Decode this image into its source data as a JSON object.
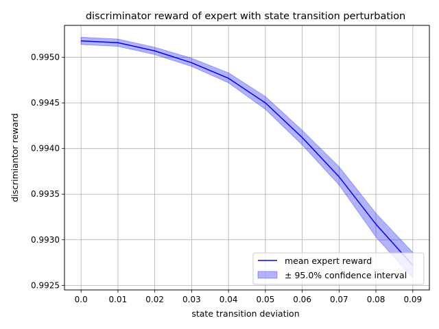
{
  "chart_data": {
    "type": "line",
    "title": "discriminator reward of expert with state transition perturbation",
    "xlabel": "state transition deviation",
    "ylabel": "discrimiantor reward",
    "x": [
      0.0,
      0.01,
      0.02,
      0.03,
      0.04,
      0.05,
      0.06,
      0.07,
      0.08,
      0.09
    ],
    "x_tick_labels": [
      "0.0",
      "0.01",
      "0.02",
      "0.03",
      "0.04",
      "0.05",
      "0.06",
      "0.07",
      "0.08",
      "0.09"
    ],
    "y_ticks": [
      0.9925,
      0.993,
      0.9935,
      0.994,
      0.9945,
      0.995
    ],
    "y_tick_labels": [
      "0.9925",
      "0.9930",
      "0.9935",
      "0.9940",
      "0.9945",
      "0.9950"
    ],
    "xlim": [
      -0.0045,
      0.0945
    ],
    "ylim": [
      0.99245,
      0.99535
    ],
    "grid": true,
    "legend_position": "lower-right",
    "series": [
      {
        "name": "mean expert reward",
        "color": "#0000ff",
        "values": [
          0.99518,
          0.99516,
          0.99507,
          0.99494,
          0.99477,
          0.9945,
          0.99412,
          0.99369,
          0.99317,
          0.99272
        ],
        "band_name": "± 95.0% confidence interval",
        "band_color": "#0000ff",
        "band_alpha": 0.3,
        "lower": [
          0.99514,
          0.99512,
          0.99503,
          0.9949,
          0.99472,
          0.99443,
          0.99404,
          0.9936,
          0.99303,
          0.99258
        ],
        "upper": [
          0.99522,
          0.9952,
          0.99511,
          0.99499,
          0.99483,
          0.99457,
          0.9942,
          0.9938,
          0.99329,
          0.99286
        ]
      }
    ]
  }
}
